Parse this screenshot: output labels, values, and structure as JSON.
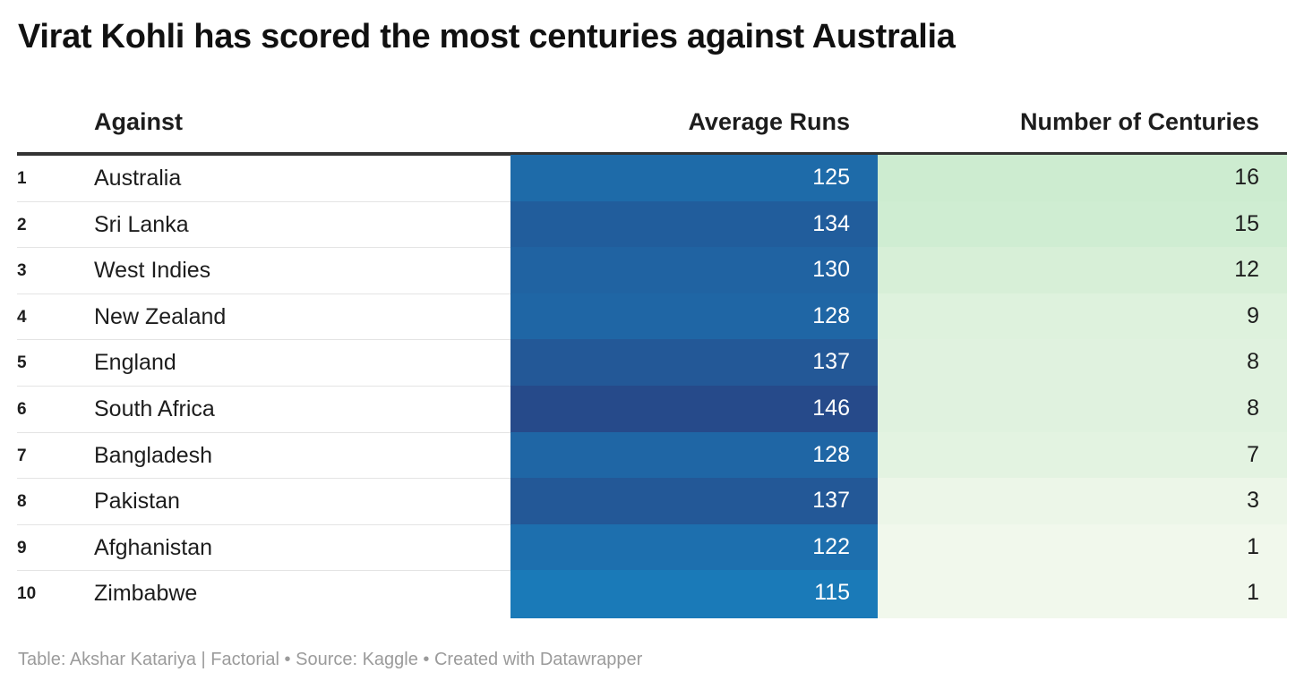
{
  "title": "Virat Kohli has scored the most centuries against Australia",
  "footer": "Table: Akshar Katariya | Factorial • Source: Kaggle • Created with Datawrapper",
  "colors": {
    "avg_scale_low": "#1a7ab8",
    "avg_scale_high": "#264a8a",
    "cent_scale_low": "#f1f8ec",
    "cent_scale_high": "#cdecd0"
  },
  "chart_data": {
    "type": "table",
    "columns": [
      "Against",
      "Average Runs",
      "Number of Centuries"
    ],
    "rows": [
      {
        "rank": "1",
        "against": "Australia",
        "average_runs": 125,
        "centuries": 16
      },
      {
        "rank": "2",
        "against": "Sri Lanka",
        "average_runs": 134,
        "centuries": 15
      },
      {
        "rank": "3",
        "against": "West Indies",
        "average_runs": 130,
        "centuries": 12
      },
      {
        "rank": "4",
        "against": "New Zealand",
        "average_runs": 128,
        "centuries": 9
      },
      {
        "rank": "5",
        "against": "England",
        "average_runs": 137,
        "centuries": 8
      },
      {
        "rank": "6",
        "against": "South Africa",
        "average_runs": 146,
        "centuries": 8
      },
      {
        "rank": "7",
        "against": "Bangladesh",
        "average_runs": 128,
        "centuries": 7
      },
      {
        "rank": "8",
        "against": "Pakistan",
        "average_runs": 137,
        "centuries": 3
      },
      {
        "rank": "9",
        "against": "Afghanistan",
        "average_runs": 122,
        "centuries": 1
      },
      {
        "rank": "10",
        "against": "Zimbabwe",
        "average_runs": 115,
        "centuries": 1
      }
    ]
  }
}
